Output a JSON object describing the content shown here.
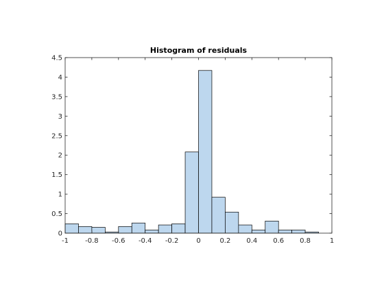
{
  "chart_data": {
    "type": "bar",
    "title": "Histogram of residuals",
    "xlabel": "",
    "ylabel": "",
    "xlim": [
      -1,
      1
    ],
    "ylim": [
      0,
      4.5
    ],
    "grid": false,
    "legend": "none",
    "bin_edges": [
      -1.0,
      -0.9,
      -0.8,
      -0.7,
      -0.6,
      -0.5,
      -0.4,
      -0.3,
      -0.2,
      -0.1,
      0.0,
      0.1,
      0.2,
      0.3,
      0.4,
      0.5,
      0.6,
      0.7,
      0.8,
      0.9
    ],
    "bin_width": 0.1,
    "values": [
      0.24,
      0.17,
      0.15,
      0.03,
      0.17,
      0.26,
      0.08,
      0.21,
      0.24,
      2.08,
      4.17,
      0.92,
      0.54,
      0.21,
      0.08,
      0.31,
      0.08,
      0.08,
      0.03
    ],
    "x_ticks": [
      {
        "value": -1,
        "label": "-1"
      },
      {
        "value": -0.8,
        "label": "-0.8"
      },
      {
        "value": -0.6,
        "label": "-0.6"
      },
      {
        "value": -0.4,
        "label": "-0.4"
      },
      {
        "value": -0.2,
        "label": "-0.2"
      },
      {
        "value": 0,
        "label": "0"
      },
      {
        "value": 0.2,
        "label": "0.2"
      },
      {
        "value": 0.4,
        "label": "0.4"
      },
      {
        "value": 0.6,
        "label": "0.6"
      },
      {
        "value": 0.8,
        "label": "0.8"
      },
      {
        "value": 1,
        "label": "1"
      }
    ],
    "y_ticks": [
      {
        "value": 0,
        "label": "0"
      },
      {
        "value": 0.5,
        "label": "0.5"
      },
      {
        "value": 1,
        "label": "1"
      },
      {
        "value": 1.5,
        "label": "1.5"
      },
      {
        "value": 2,
        "label": "2"
      },
      {
        "value": 2.5,
        "label": "2.5"
      },
      {
        "value": 3,
        "label": "3"
      },
      {
        "value": 3.5,
        "label": "3.5"
      },
      {
        "value": 4,
        "label": "4"
      },
      {
        "value": 4.5,
        "label": "4.5"
      }
    ],
    "colors": {
      "bar_fill": "#bdd7ee",
      "bar_edge": "#000000",
      "axis": "#262626",
      "background": "#ffffff"
    }
  }
}
